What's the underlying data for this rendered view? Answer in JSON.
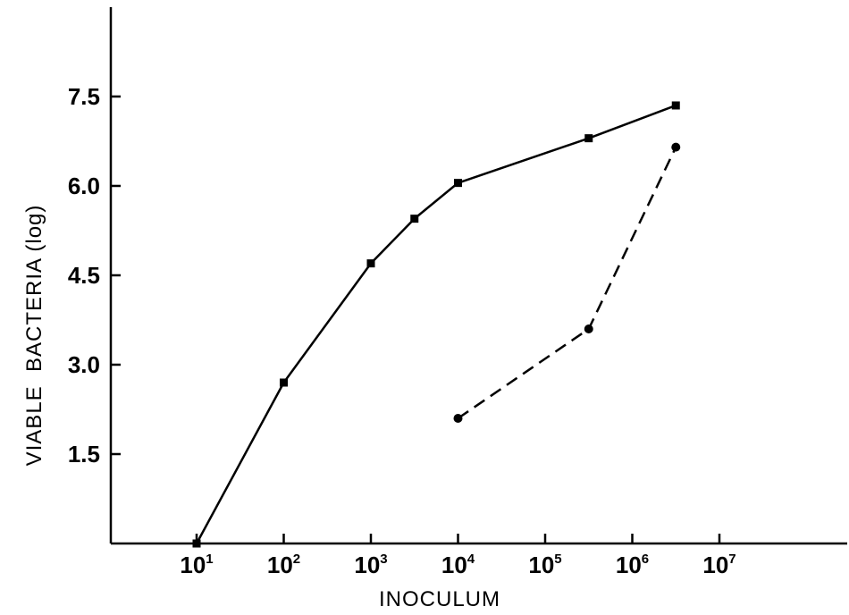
{
  "chart_data": {
    "type": "line",
    "xlabel": "INOCULUM",
    "ylabel": "VIABLE  BACTERIA (log)",
    "x_scale": "log",
    "xlim": [
      1,
      7.8
    ],
    "ylim": [
      0,
      8.4
    ],
    "x_ticks": [
      {
        "base": "10",
        "exp": "1",
        "value": 1
      },
      {
        "base": "10",
        "exp": "2",
        "value": 2
      },
      {
        "base": "10",
        "exp": "3",
        "value": 3
      },
      {
        "base": "10",
        "exp": "4",
        "value": 4
      },
      {
        "base": "10",
        "exp": "5",
        "value": 5
      },
      {
        "base": "10",
        "exp": "6",
        "value": 6
      },
      {
        "base": "10",
        "exp": "7",
        "value": 7
      }
    ],
    "y_ticks": [
      {
        "label": "1.5",
        "value": 1.5
      },
      {
        "label": "3.0",
        "value": 3.0
      },
      {
        "label": "4.5",
        "value": 4.5
      },
      {
        "label": "6.0",
        "value": 6.0
      },
      {
        "label": "7.5",
        "value": 7.5
      }
    ],
    "series": [
      {
        "style": "solid",
        "marker": "square",
        "x_log10": [
          1,
          2,
          3,
          3.5,
          4,
          5.5,
          6.5
        ],
        "y": [
          0.0,
          2.7,
          4.7,
          5.45,
          6.05,
          6.8,
          7.35
        ]
      },
      {
        "style": "dashed",
        "marker": "circle",
        "x_log10": [
          4,
          5.5,
          6.5
        ],
        "y": [
          2.1,
          3.6,
          6.65
        ]
      }
    ],
    "grid": false,
    "legend": "none"
  }
}
